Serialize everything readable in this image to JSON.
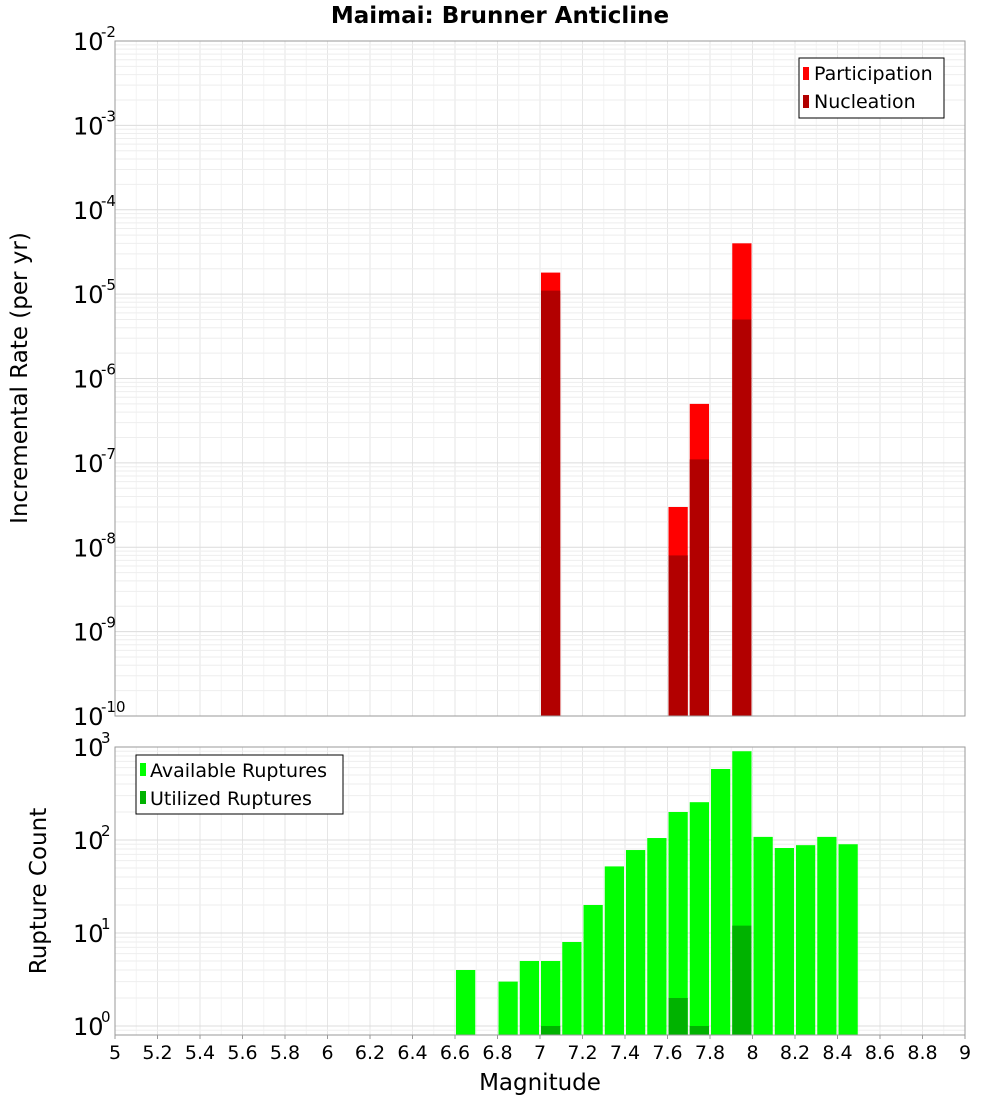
{
  "chart_data": [
    {
      "type": "bar",
      "title": "Maimai: Brunner Anticline",
      "xlabel": "",
      "ylabel": "Incremental Rate (per yr)",
      "yscale": "log",
      "ylim": [
        1e-10,
        0.01
      ],
      "xlim": [
        5,
        9
      ],
      "bin_width": 0.1,
      "legend_position": "top-right",
      "colors": {
        "Participation": "#ff0000",
        "Nucleation": "#b20000"
      },
      "series": [
        {
          "name": "Participation",
          "x": [
            7.05,
            7.65,
            7.75,
            7.95
          ],
          "values": [
            1.8e-05,
            3e-08,
            5e-07,
            4e-05
          ]
        },
        {
          "name": "Nucleation",
          "x": [
            7.05,
            7.65,
            7.75,
            7.95
          ],
          "values": [
            1.1e-05,
            8e-09,
            1.1e-07,
            5e-06
          ]
        }
      ]
    },
    {
      "type": "bar",
      "title": "",
      "xlabel": "Magnitude",
      "ylabel": "Rupture Count",
      "yscale": "log",
      "ylim": [
        0.8,
        1000
      ],
      "xlim": [
        5,
        9
      ],
      "bin_width": 0.1,
      "legend_position": "top-left",
      "colors": {
        "Available Ruptures": "#00ff00",
        "Utilized Ruptures": "#00b200"
      },
      "series": [
        {
          "name": "Available Ruptures",
          "x": [
            6.65,
            6.85,
            6.95,
            7.05,
            7.15,
            7.25,
            7.35,
            7.45,
            7.55,
            7.65,
            7.75,
            7.85,
            7.95,
            8.05,
            8.15,
            8.25,
            8.35,
            8.45
          ],
          "values": [
            4,
            3,
            5,
            5,
            8,
            20,
            52,
            78,
            105,
            200,
            255,
            580,
            900,
            108,
            82,
            88,
            108,
            90
          ]
        },
        {
          "name": "Utilized Ruptures",
          "x": [
            7.05,
            7.65,
            7.75,
            7.95
          ],
          "values": [
            1,
            2,
            1,
            12
          ]
        }
      ]
    }
  ],
  "x_ticks": [
    "5",
    "5.2",
    "5.4",
    "5.6",
    "5.8",
    "6",
    "6.2",
    "6.4",
    "6.6",
    "6.8",
    "7",
    "7.2",
    "7.4",
    "7.6",
    "7.8",
    "8",
    "8.2",
    "8.4",
    "8.6",
    "8.8",
    "9"
  ],
  "top_y_ticks": [
    {
      "base": "10",
      "exp": "-10"
    },
    {
      "base": "10",
      "exp": "-9"
    },
    {
      "base": "10",
      "exp": "-8"
    },
    {
      "base": "10",
      "exp": "-7"
    },
    {
      "base": "10",
      "exp": "-6"
    },
    {
      "base": "10",
      "exp": "-5"
    },
    {
      "base": "10",
      "exp": "-4"
    },
    {
      "base": "10",
      "exp": "-3"
    },
    {
      "base": "10",
      "exp": "-2"
    }
  ],
  "bottom_y_ticks": [
    {
      "base": "10",
      "exp": "0"
    },
    {
      "base": "10",
      "exp": "1"
    },
    {
      "base": "10",
      "exp": "2"
    },
    {
      "base": "10",
      "exp": "3"
    }
  ]
}
